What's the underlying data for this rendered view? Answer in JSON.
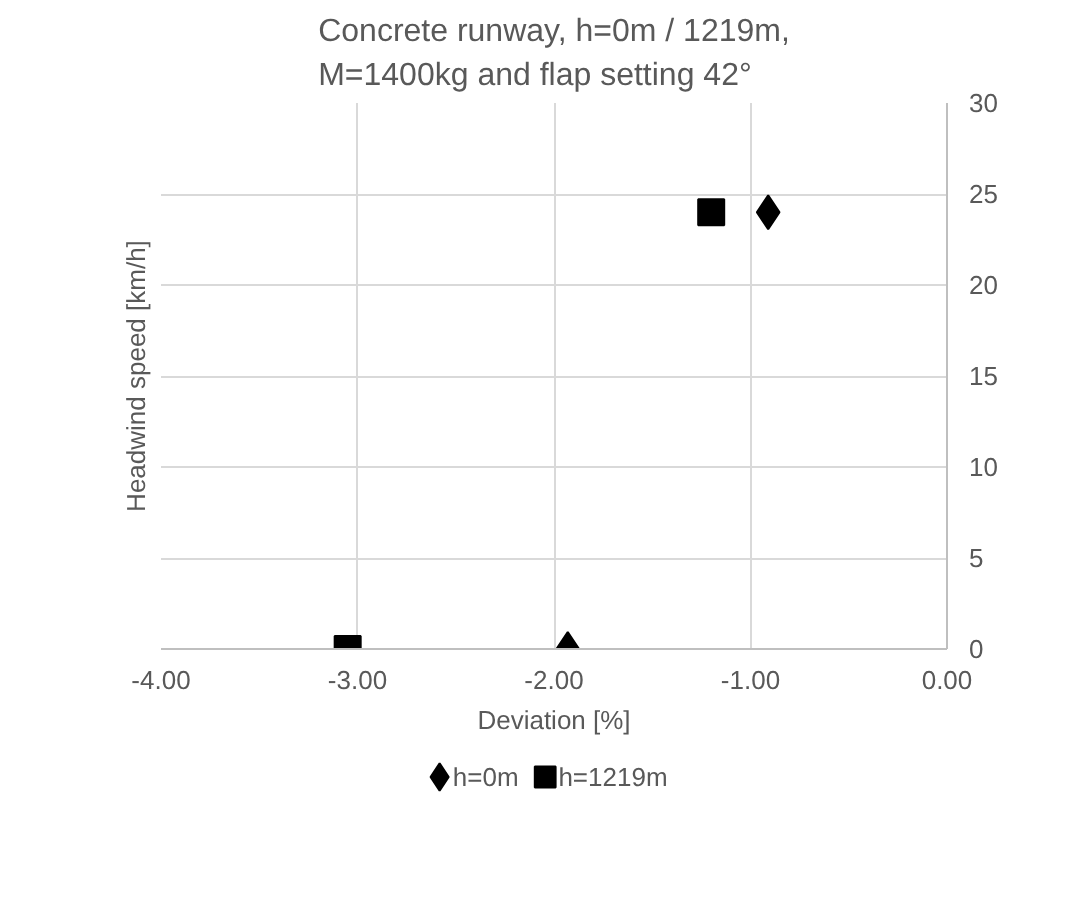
{
  "chart_data": {
    "type": "scatter",
    "title": "Concrete runway, h=0m / 1219m,\nM=1400kg and flap setting 42°",
    "xlabel": "Deviation [%]",
    "ylabel": "Headwind speed [km/h]",
    "series": [
      {
        "name": "h=0m",
        "color": "#000000",
        "marker": "diamond",
        "x": [
          -1.93,
          -0.91
        ],
        "values": [
          0,
          24
        ]
      },
      {
        "name": "h=1219m",
        "color": "#000000",
        "marker": "square",
        "x": [
          -3.05,
          -1.2
        ],
        "values": [
          0,
          24
        ]
      }
    ],
    "xlim": [
      -4,
      0
    ],
    "xticks": [
      {
        "value": -4,
        "label": "-4.00"
      },
      {
        "value": -3,
        "label": "-3.00"
      },
      {
        "value": -2,
        "label": "-2.00"
      },
      {
        "value": -1,
        "label": "-1.00"
      },
      {
        "value": 0,
        "label": "0.00"
      }
    ],
    "ylim": [
      0,
      30
    ],
    "yticks": [
      0,
      5,
      10,
      15,
      20,
      25,
      30
    ],
    "grid": true,
    "legend": "bottom"
  }
}
